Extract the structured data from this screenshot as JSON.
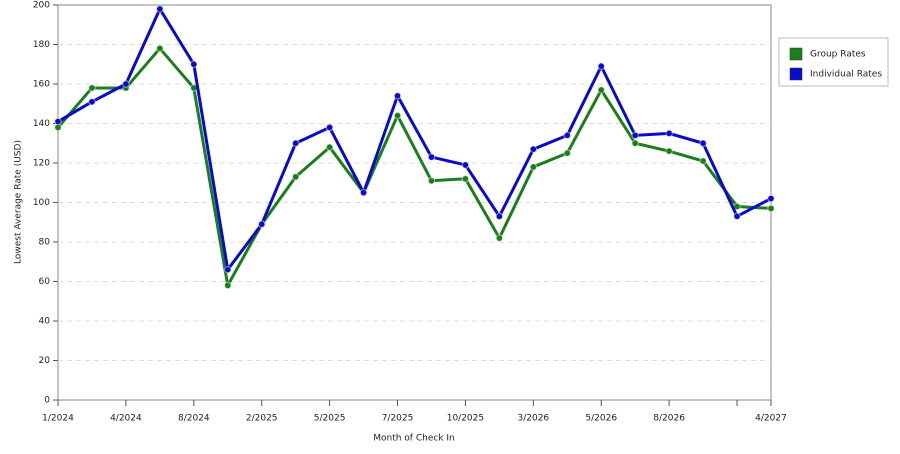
{
  "chart_data": {
    "type": "line",
    "x_label": "Month of Check In",
    "y_label": "Lowest Average Rate (USD)",
    "categories": [
      "1/2024",
      null,
      "4/2024",
      null,
      "8/2024",
      null,
      "2/2025",
      null,
      "5/2025",
      null,
      "7/2025",
      null,
      "10/2025",
      null,
      "3/2026",
      null,
      "5/2026",
      null,
      "8/2026",
      null,
      null,
      "4/2027"
    ],
    "series": [
      {
        "name": "Group Rates",
        "color": "#1a7f1a",
        "values": [
          138,
          158,
          158,
          178,
          158,
          58,
          89,
          113,
          128,
          105,
          144,
          111,
          112,
          82,
          118,
          125,
          157,
          130,
          126,
          121,
          98,
          97
        ]
      },
      {
        "name": "Individual Rates",
        "color": "#0a0acc",
        "values": [
          141,
          151,
          160,
          198,
          170,
          66,
          89,
          130,
          138,
          105,
          154,
          123,
          119,
          93,
          127,
          134,
          169,
          134,
          135,
          130,
          93,
          102
        ]
      }
    ],
    "ylim": [
      0,
      200
    ],
    "yticks": [
      0,
      20,
      40,
      60,
      80,
      100,
      120,
      140,
      160,
      180,
      200
    ],
    "grid": true,
    "legend": "right"
  }
}
